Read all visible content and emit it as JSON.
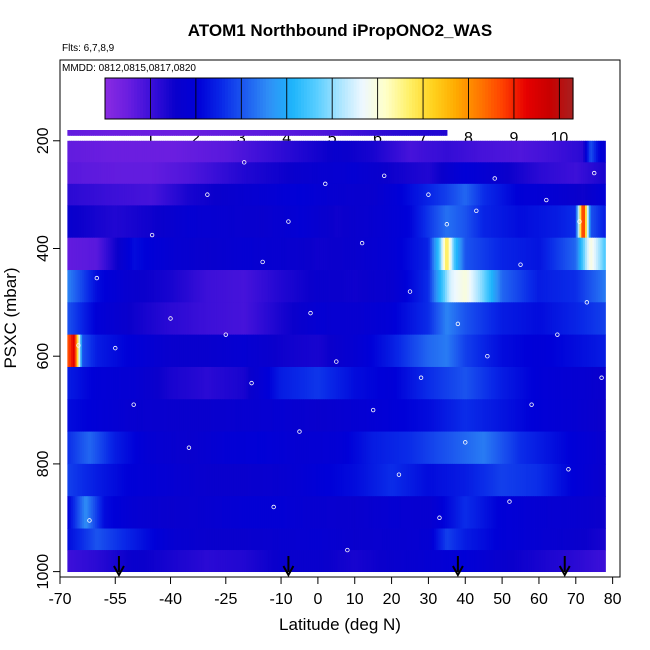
{
  "chart_data": {
    "type": "heatmap",
    "title": "ATOM1 Northbound iPropONO2_WAS",
    "flights_note": "Flts: 6,7,8,9",
    "dates_note": "MMDD: 0812,0815,0817,0820",
    "xlabel": "Latitude (deg N)",
    "ylabel": "PSXC (mbar)",
    "xlim": [
      -70,
      82
    ],
    "ylim": [
      1010,
      50
    ],
    "x_ticks": [
      "-70",
      "-55",
      "-40",
      "-25",
      "-10",
      "0",
      "10",
      "20",
      "30",
      "40",
      "50",
      "60",
      "70",
      "80"
    ],
    "x_tick_values": [
      -70,
      -55,
      -40,
      -25,
      -10,
      0,
      10,
      20,
      30,
      40,
      50,
      60,
      70,
      80
    ],
    "y_ticks": [
      "200",
      "400",
      "600",
      "800",
      "1000"
    ],
    "y_tick_values": [
      200,
      400,
      600,
      800,
      1000
    ],
    "colorbar": {
      "min": 0,
      "max": 10.3,
      "tick_labels": [
        "1",
        "2",
        "3",
        "4",
        "5",
        "6",
        "7",
        "8",
        "9",
        "10"
      ],
      "tick_values": [
        1,
        2,
        3,
        4,
        5,
        6,
        7,
        8,
        9,
        10
      ],
      "colors": [
        "#8a2be2",
        "#6a1ee0",
        "#3a0fd8",
        "#0a00cc",
        "#0000d8",
        "#0a2ae8",
        "#1e5cf0",
        "#2f8ff6",
        "#1eb4fb",
        "#55ccff",
        "#a8e4ff",
        "#eef8ff",
        "#ffffc8",
        "#fff068",
        "#ffd21e",
        "#ffaa00",
        "#ff7800",
        "#ff4000",
        "#e60000",
        "#c80000",
        "#a82020"
      ]
    },
    "bands": [
      {
        "p": [
          180,
          190
        ],
        "lat": [
          -68,
          -55,
          -40,
          -25,
          -10,
          0,
          10,
          20,
          30,
          35
        ],
        "v": [
          0.6,
          0.5,
          0.5,
          0.6,
          0.7,
          0.8,
          1.0,
          1.2,
          1.3,
          1.3
        ]
      },
      {
        "p": [
          200,
          240
        ],
        "lat": [
          -68,
          -55,
          -40,
          -25,
          -15,
          -5,
          5,
          15,
          25,
          35,
          45,
          55,
          65,
          72,
          74,
          76,
          78
        ],
        "v": [
          0.6,
          0.5,
          0.5,
          0.7,
          1.0,
          1.3,
          1.6,
          1.4,
          0.9,
          1.1,
          0.9,
          0.8,
          1.0,
          1.2,
          3.0,
          2.2,
          1.8
        ]
      },
      {
        "p": [
          240,
          280
        ],
        "lat": [
          -68,
          -55,
          -45,
          -35,
          -20,
          -10,
          0,
          10,
          20,
          30,
          40,
          50,
          60,
          70,
          78
        ],
        "v": [
          0.7,
          0.6,
          0.6,
          0.8,
          1.3,
          1.5,
          1.7,
          1.8,
          1.5,
          1.3,
          2.0,
          1.6,
          1.2,
          1.0,
          1.4
        ]
      },
      {
        "p": [
          280,
          320
        ],
        "lat": [
          -68,
          -55,
          -45,
          -35,
          -25,
          -15,
          -5,
          5,
          15,
          25,
          35,
          40,
          45,
          55,
          65,
          72,
          78
        ],
        "v": [
          1.2,
          1.0,
          0.9,
          1.4,
          1.6,
          1.8,
          2.0,
          1.7,
          1.6,
          2.2,
          2.8,
          3.2,
          2.6,
          2.0,
          1.8,
          1.5,
          2.0
        ]
      },
      {
        "p": [
          320,
          380
        ],
        "lat": [
          -68,
          -55,
          -45,
          -35,
          -25,
          -15,
          -5,
          5,
          15,
          25,
          35,
          40,
          45,
          55,
          65,
          70,
          72,
          74,
          78
        ],
        "v": [
          1.6,
          1.3,
          1.5,
          1.8,
          1.7,
          1.6,
          1.9,
          1.5,
          1.7,
          2.1,
          3.3,
          3.0,
          2.5,
          2.2,
          2.4,
          2.6,
          9.5,
          3.0,
          2.4
        ]
      },
      {
        "p": [
          380,
          440
        ],
        "lat": [
          -68,
          -60,
          -50,
          -40,
          -30,
          -20,
          -10,
          0,
          10,
          20,
          30,
          33,
          35,
          37,
          40,
          50,
          60,
          70,
          74,
          78
        ],
        "v": [
          0.6,
          0.7,
          2.2,
          1.8,
          1.6,
          1.8,
          1.7,
          1.5,
          1.6,
          1.9,
          2.5,
          4.5,
          7.0,
          4.5,
          3.0,
          2.5,
          2.3,
          3.2,
          6.0,
          4.5
        ]
      },
      {
        "p": [
          440,
          500
        ],
        "lat": [
          -68,
          -60,
          -50,
          -40,
          -30,
          -20,
          -10,
          0,
          10,
          20,
          30,
          36,
          40,
          45,
          50,
          60,
          70,
          78
        ],
        "v": [
          3.5,
          2.2,
          1.6,
          1.4,
          1.0,
          0.9,
          1.3,
          1.6,
          1.5,
          1.7,
          2.6,
          5.5,
          6.0,
          4.8,
          3.2,
          2.4,
          2.6,
          3.4
        ]
      },
      {
        "p": [
          500,
          560
        ],
        "lat": [
          -68,
          -60,
          -50,
          -40,
          -30,
          -20,
          -10,
          0,
          10,
          20,
          30,
          35,
          40,
          50,
          60,
          70,
          78
        ],
        "v": [
          3.0,
          2.0,
          1.5,
          1.2,
          1.0,
          0.9,
          1.4,
          1.8,
          1.7,
          2.0,
          2.6,
          3.5,
          3.0,
          2.4,
          2.2,
          2.5,
          2.8
        ]
      },
      {
        "p": [
          560,
          620
        ],
        "lat": [
          -68,
          -66,
          -64,
          -60,
          -50,
          -40,
          -30,
          -20,
          -10,
          0,
          10,
          20,
          30,
          35,
          40,
          50,
          60,
          70,
          78
        ],
        "v": [
          8.5,
          9.5,
          3.0,
          2.4,
          2.0,
          1.6,
          1.6,
          1.8,
          1.5,
          1.4,
          1.8,
          2.4,
          3.2,
          3.4,
          2.8,
          2.2,
          2.0,
          2.2,
          2.4
        ]
      },
      {
        "p": [
          620,
          680
        ],
        "lat": [
          -68,
          -60,
          -50,
          -40,
          -30,
          -20,
          -10,
          0,
          10,
          20,
          30,
          40,
          50,
          60,
          70,
          78
        ],
        "v": [
          2.4,
          2.0,
          1.8,
          1.4,
          1.2,
          1.4,
          2.4,
          2.7,
          2.2,
          2.0,
          2.6,
          3.0,
          2.4,
          2.0,
          1.8,
          1.6
        ]
      },
      {
        "p": [
          680,
          740
        ],
        "lat": [
          -68,
          -60,
          -50,
          -40,
          -30,
          -20,
          -10,
          0,
          10,
          20,
          30,
          40,
          50,
          60,
          70,
          78
        ],
        "v": [
          2.2,
          2.0,
          1.7,
          1.6,
          1.6,
          1.7,
          1.8,
          1.6,
          1.8,
          2.0,
          2.2,
          2.6,
          2.3,
          2.0,
          1.8,
          1.5
        ]
      },
      {
        "p": [
          740,
          800
        ],
        "lat": [
          -68,
          -62,
          -55,
          -45,
          -35,
          -25,
          -15,
          -5,
          5,
          15,
          25,
          35,
          45,
          55,
          65,
          75,
          78
        ],
        "v": [
          2.6,
          3.2,
          2.4,
          1.8,
          1.6,
          1.9,
          2.0,
          1.8,
          1.9,
          2.4,
          2.6,
          3.0,
          3.4,
          2.6,
          2.2,
          1.8,
          1.6
        ]
      },
      {
        "p": [
          800,
          860
        ],
        "lat": [
          -68,
          -60,
          -50,
          -40,
          -30,
          -20,
          -10,
          0,
          10,
          20,
          30,
          40,
          50,
          60,
          70,
          78
        ],
        "v": [
          2.8,
          2.4,
          2.0,
          1.8,
          1.6,
          1.6,
          1.7,
          2.0,
          2.2,
          2.6,
          2.2,
          2.4,
          2.8,
          2.6,
          2.0,
          1.6
        ]
      },
      {
        "p": [
          860,
          920
        ],
        "lat": [
          -68,
          -63,
          -58,
          -50,
          -40,
          -30,
          -20,
          -10,
          0,
          10,
          20,
          30,
          40,
          50,
          60,
          70,
          78
        ],
        "v": [
          2.0,
          3.6,
          2.2,
          1.8,
          1.6,
          1.7,
          1.9,
          1.9,
          1.7,
          1.6,
          1.8,
          1.7,
          2.6,
          2.0,
          1.8,
          1.7,
          1.5
        ]
      },
      {
        "p": [
          920,
          960
        ],
        "lat": [
          -68,
          -60,
          -50,
          -40,
          -30,
          -20,
          -10,
          0,
          10,
          20,
          30,
          35,
          40,
          50,
          60,
          70,
          78
        ],
        "v": [
          2.2,
          3.0,
          2.4,
          1.8,
          1.6,
          1.6,
          1.7,
          1.8,
          1.6,
          1.7,
          1.8,
          2.8,
          2.4,
          2.0,
          1.8,
          1.6,
          1.4
        ]
      },
      {
        "p": [
          960,
          1000
        ],
        "lat": [
          -68,
          -60,
          -50,
          -40,
          -30,
          -20,
          -10,
          0,
          10,
          20,
          30,
          40,
          50,
          60,
          70,
          78
        ],
        "v": [
          1.0,
          1.2,
          1.6,
          1.4,
          1.2,
          1.3,
          1.6,
          1.6,
          1.4,
          1.6,
          1.8,
          2.0,
          1.6,
          1.4,
          1.2,
          1.0
        ]
      }
    ],
    "sample_points": [
      {
        "lat": -65,
        "p": 580
      },
      {
        "lat": -62,
        "p": 905
      },
      {
        "lat": -60,
        "p": 455
      },
      {
        "lat": -55,
        "p": 585
      },
      {
        "lat": -50,
        "p": 690
      },
      {
        "lat": -45,
        "p": 375
      },
      {
        "lat": -40,
        "p": 530
      },
      {
        "lat": -35,
        "p": 770
      },
      {
        "lat": -30,
        "p": 300
      },
      {
        "lat": -25,
        "p": 560
      },
      {
        "lat": -20,
        "p": 240
      },
      {
        "lat": -18,
        "p": 650
      },
      {
        "lat": -15,
        "p": 425
      },
      {
        "lat": -12,
        "p": 880
      },
      {
        "lat": -8,
        "p": 350
      },
      {
        "lat": -5,
        "p": 740
      },
      {
        "lat": -2,
        "p": 520
      },
      {
        "lat": 2,
        "p": 280
      },
      {
        "lat": 5,
        "p": 610
      },
      {
        "lat": 8,
        "p": 960
      },
      {
        "lat": 12,
        "p": 390
      },
      {
        "lat": 15,
        "p": 700
      },
      {
        "lat": 18,
        "p": 265
      },
      {
        "lat": 22,
        "p": 820
      },
      {
        "lat": 25,
        "p": 480
      },
      {
        "lat": 28,
        "p": 640
      },
      {
        "lat": 30,
        "p": 300
      },
      {
        "lat": 33,
        "p": 900
      },
      {
        "lat": 35,
        "p": 355
      },
      {
        "lat": 38,
        "p": 540
      },
      {
        "lat": 40,
        "p": 760
      },
      {
        "lat": 43,
        "p": 330
      },
      {
        "lat": 46,
        "p": 600
      },
      {
        "lat": 48,
        "p": 270
      },
      {
        "lat": 52,
        "p": 870
      },
      {
        "lat": 55,
        "p": 430
      },
      {
        "lat": 58,
        "p": 690
      },
      {
        "lat": 62,
        "p": 310
      },
      {
        "lat": 65,
        "p": 560
      },
      {
        "lat": 68,
        "p": 810
      },
      {
        "lat": 71,
        "p": 350
      },
      {
        "lat": 73,
        "p": 500
      },
      {
        "lat": 75,
        "p": 260
      },
      {
        "lat": 77,
        "p": 640
      }
    ],
    "arrows_lat": [
      -54,
      -8,
      38,
      67
    ]
  }
}
